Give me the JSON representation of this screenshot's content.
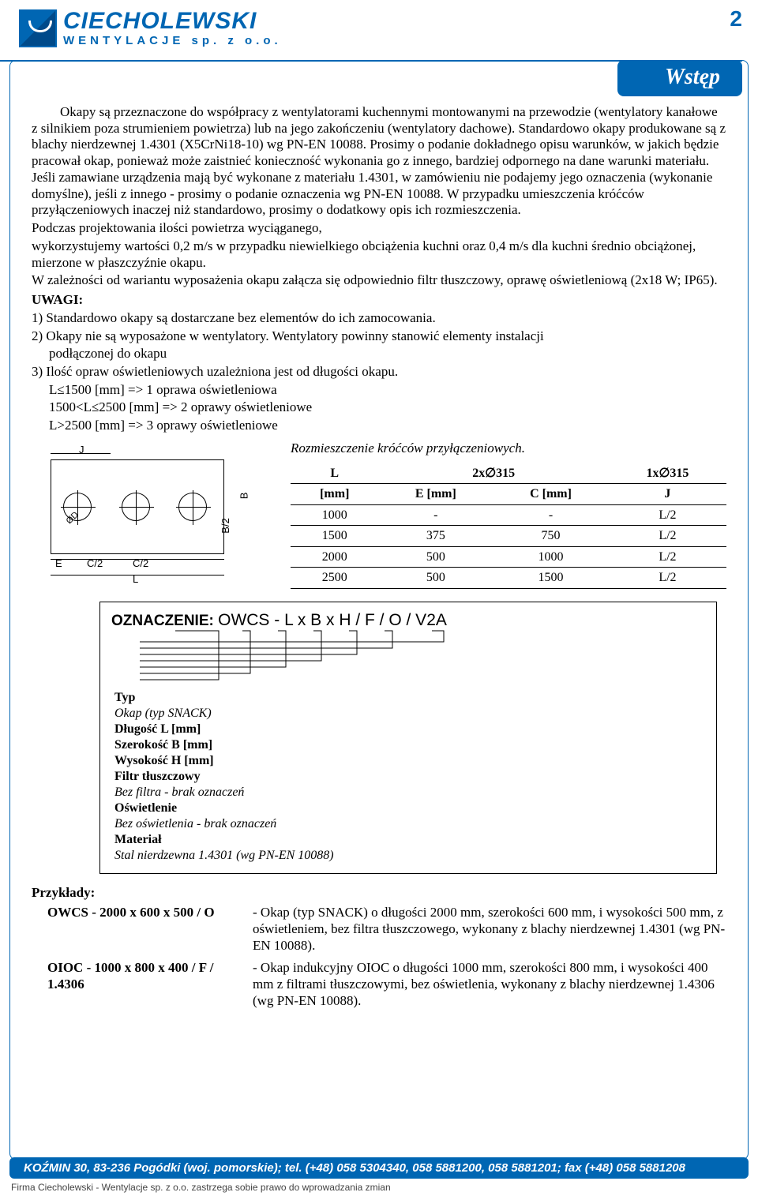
{
  "page_number": "2",
  "logo": {
    "name": "CIECHOLEWSKI",
    "sub": "WENTYLACJE sp. z o.o."
  },
  "title": "Wstęp",
  "body": {
    "p1": "Okapy są przeznaczone do współpracy z wentylatorami kuchennymi montowanymi na przewodzie (wentylatory kanałowe z silnikiem poza strumieniem powietrza) lub na jego zakończeniu (wentylatory dachowe). Standardowo okapy produkowane są z blachy nierdzewnej 1.4301 (X5CrNi18-10) wg PN-EN 10088. Prosimy o podanie dokładnego opisu warunków, w jakich będzie pracował okap, ponieważ może zaistnieć konieczność wykonania go z innego, bardziej odpornego na dane warunki materiału. Jeśli zamawiane urządzenia mają być wykonane z materiału 1.4301, w zamówieniu nie podajemy jego oznaczenia (wykonanie domyślne), jeśli z innego - prosimy o podanie oznaczenia wg PN-EN 10088. W przypadku umieszczenia króćców przyłączeniowych inaczej niż standardowo, prosimy o dodatkowy opis ich rozmieszczenia.",
    "p2": "Podczas projektowania ilości powietrza wyciąganego,",
    "p3": "wykorzystujemy wartości 0,2 m/s w przypadku niewielkiego obciążenia kuchni oraz 0,4 m/s dla kuchni średnio obciążonej, mierzone w płaszczyźnie okapu.",
    "p4": "W zależności od wariantu wyposażenia okapu załącza się odpowiednio filtr tłuszczowy, oprawę oświetleniową (2x18 W; IP65).",
    "uwagi_title": "UWAGI:",
    "n1": "1) Standardowo okapy są dostarczane bez elementów do ich zamocowania.",
    "n2": "2) Okapy nie są wyposażone w wentylatory. Wentylatory powinny stanowić elementy instalacji",
    "n2b": "podłączonej do okapu",
    "n3": "3) Ilość opraw oświetleniowych uzależniona jest od długości okapu.",
    "r1": "L≤1500 [mm] => 1 oprawa oświetleniowa",
    "r2": "1500<L≤2500 [mm] => 2 oprawy oświetleniowe",
    "r3": "L>2500 [mm] => 3 oprawy oświetleniowe"
  },
  "diagram_labels": {
    "J": "J",
    "B": "B",
    "B2": "B/2",
    "E": "E",
    "C2": "C/2",
    "L": "L",
    "OD": "ØD"
  },
  "table": {
    "caption": "Rozmieszczenie króćców przyłączeniowych.",
    "head_L": "L",
    "head_Lmm": "[mm]",
    "head_2x": "2x∅315",
    "head_1x": "1x∅315",
    "head_E": "E [mm]",
    "head_C": "C [mm]",
    "head_J": "J",
    "rows": [
      [
        "1000",
        "-",
        "-",
        "L/2"
      ],
      [
        "1500",
        "375",
        "750",
        "L/2"
      ],
      [
        "2000",
        "500",
        "1000",
        "L/2"
      ],
      [
        "2500",
        "500",
        "1500",
        "L/2"
      ]
    ]
  },
  "designation": {
    "label": "OZNACZENIE:",
    "code": "OWCS - L x B x H / F / O / V2A",
    "items": [
      {
        "bold": "Typ",
        "italic": ""
      },
      {
        "bold": "",
        "italic": "Okap (typ SNACK)"
      },
      {
        "bold": "Długość L [mm]",
        "italic": ""
      },
      {
        "bold": "Szerokość B [mm]",
        "italic": ""
      },
      {
        "bold": "Wysokość H [mm]",
        "italic": ""
      },
      {
        "bold": "Filtr tłuszczowy",
        "italic": ""
      },
      {
        "bold": "",
        "italic": "Bez filtra - brak oznaczeń"
      },
      {
        "bold": "Oświetlenie",
        "italic": ""
      },
      {
        "bold": "",
        "italic": "Bez oświetlenia - brak oznaczeń"
      },
      {
        "bold": "Materiał",
        "italic": ""
      },
      {
        "bold": "",
        "italic": "Stal nierdzewna 1.4301 (wg PN-EN 10088)"
      }
    ]
  },
  "examples": {
    "title": "Przykłady:",
    "rows": [
      {
        "code": "OWCS - 2000 x 600 x 500 / O",
        "desc": "- Okap (typ SNACK) o długości 2000 mm, szerokości 600 mm, i wysokości 500 mm, z oświetleniem, bez filtra tłuszczowego, wykonany z blachy nierdzewnej 1.4301 (wg PN-EN 10088)."
      },
      {
        "code": "OIOC - 1000 x 800 x 400 / F / 1.4306",
        "desc": "- Okap indukcyjny OIOC o długości 1000 mm, szerokości 800 mm, i wysokości 400 mm z filtrami tłuszczowymi, bez oświetlenia, wykonany z blachy nierdzewnej 1.4306 (wg PN-EN 10088)."
      }
    ]
  },
  "footer": {
    "bar": "KOŹMIN 30, 83-236 Pogódki (woj. pomorskie); tel. (+48) 058 5304340, 058 5881200, 058 5881201; fax (+48) 058 5881208",
    "note": "Firma Ciecholewski - Wentylacje sp. z o.o. zastrzega sobie prawo do wprowadzania zmian"
  },
  "colors": {
    "brand": "#0066b3"
  }
}
